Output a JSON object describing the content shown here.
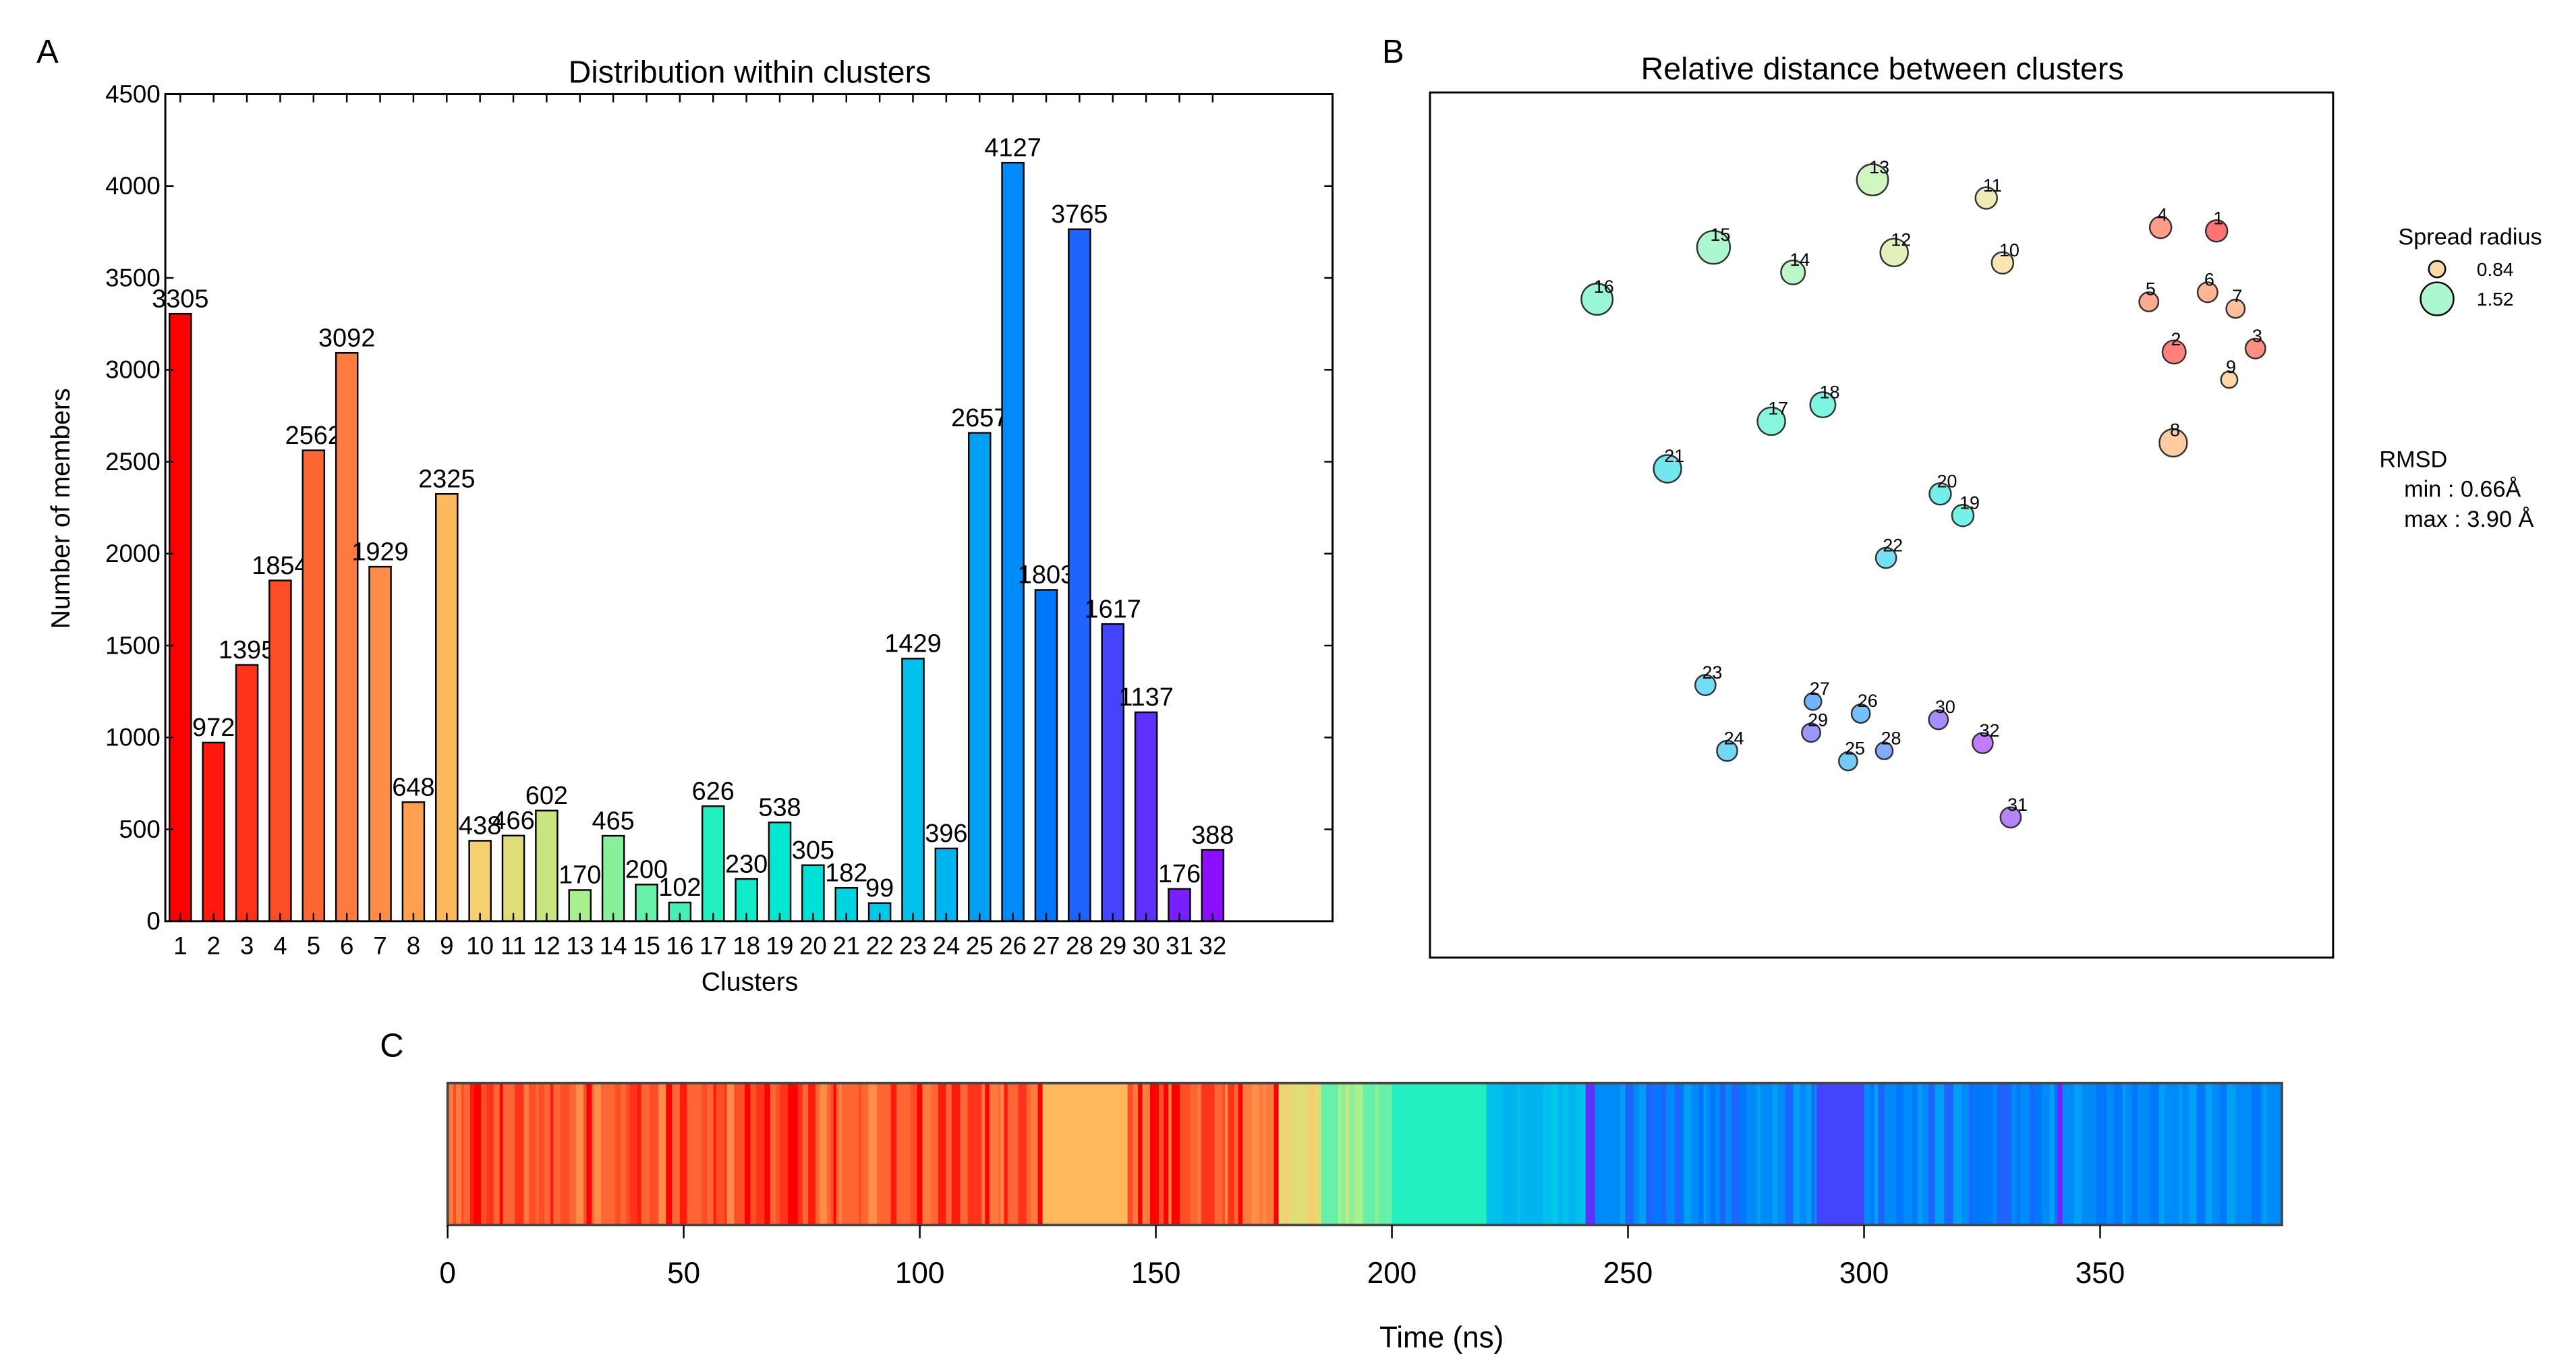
{
  "colors": [
    "#ff0000",
    "#ff1a0d",
    "#ff331a",
    "#ff4d26",
    "#ff6633",
    "#ff7a3d",
    "#ff8c47",
    "#ffa050",
    "#ffb85c",
    "#f5d070",
    "#e0dc78",
    "#c8e680",
    "#a8f08c",
    "#88f098",
    "#66f0a8",
    "#44f0b4",
    "#22f0c0",
    "#10ecc8",
    "#00e8d0",
    "#00e0d8",
    "#00d4e0",
    "#00c8e8",
    "#00c0ec",
    "#00b4f0",
    "#00a0f4",
    "#008cf8",
    "#0078fc",
    "#1e64ff",
    "#4444ff",
    "#6030ff",
    "#7820ff",
    "#8c10ff"
  ],
  "chart_data": [
    {
      "panel": "A",
      "type": "bar",
      "title": "Distribution within clusters",
      "xlabel": "Clusters",
      "ylabel": "Number of members",
      "ylim": [
        0,
        4500
      ],
      "xlim": [
        0.55,
        35.6
      ],
      "yticks": [
        "0",
        "500",
        "1000",
        "1500",
        "2000",
        "2500",
        "3000",
        "3500",
        "4000",
        "4500"
      ],
      "categories": [
        "1",
        "2",
        "3",
        "4",
        "5",
        "6",
        "7",
        "8",
        "9",
        "10",
        "11",
        "12",
        "13",
        "14",
        "15",
        "16",
        "17",
        "18",
        "19",
        "20",
        "21",
        "22",
        "23",
        "24",
        "25",
        "26",
        "27",
        "28",
        "29",
        "30",
        "31",
        "32"
      ],
      "values": [
        3305,
        972,
        1395,
        1854,
        2562,
        3092,
        1929,
        648,
        2325,
        438,
        466,
        602,
        170,
        465,
        200,
        102,
        626,
        230,
        538,
        305,
        182,
        99,
        1429,
        396,
        2657,
        4127,
        1803,
        3765,
        1617,
        1137,
        176,
        388
      ],
      "value_labels": [
        "3305",
        "972",
        "1395",
        "1854",
        "2562",
        "3092",
        "1929",
        "648",
        "2325",
        "438",
        "466",
        "602",
        "170",
        "465",
        "200",
        "102",
        "626",
        "230",
        "538",
        "305",
        "182",
        "99",
        "1429",
        "396",
        "2657",
        "4127",
        "1803",
        "3765",
        "1617",
        "1137",
        "176",
        "388"
      ]
    },
    {
      "panel": "B",
      "type": "scatter",
      "title": "Relative distance between clusters",
      "xlim": [
        0,
        100
      ],
      "ylim": [
        0,
        100
      ],
      "points": [
        {
          "label": "1",
          "x": 87.1,
          "y": 84.0,
          "spread": 1.05
        },
        {
          "label": "2",
          "x": 82.4,
          "y": 70.0,
          "spread": 1.12
        },
        {
          "label": "3",
          "x": 91.4,
          "y": 70.4,
          "spread": 0.98
        },
        {
          "label": "4",
          "x": 80.9,
          "y": 84.4,
          "spread": 1.05
        },
        {
          "label": "5",
          "x": 79.6,
          "y": 75.8,
          "spread": 0.95
        },
        {
          "label": "6",
          "x": 86.1,
          "y": 76.9,
          "spread": 0.98
        },
        {
          "label": "7",
          "x": 89.2,
          "y": 75.0,
          "spread": 0.92
        },
        {
          "label": "8",
          "x": 82.3,
          "y": 59.5,
          "spread": 1.3
        },
        {
          "label": "9",
          "x": 88.5,
          "y": 66.8,
          "spread": 0.84
        },
        {
          "label": "10",
          "x": 63.4,
          "y": 80.3,
          "spread": 1.05
        },
        {
          "label": "11",
          "x": 61.6,
          "y": 87.8,
          "spread": 1.05
        },
        {
          "label": "12",
          "x": 51.4,
          "y": 81.5,
          "spread": 1.3
        },
        {
          "label": "13",
          "x": 49.0,
          "y": 89.9,
          "spread": 1.45
        },
        {
          "label": "14",
          "x": 40.2,
          "y": 79.2,
          "spread": 1.15
        },
        {
          "label": "15",
          "x": 31.4,
          "y": 82.1,
          "spread": 1.52
        },
        {
          "label": "16",
          "x": 18.5,
          "y": 76.1,
          "spread": 1.45
        },
        {
          "label": "17",
          "x": 37.8,
          "y": 62.0,
          "spread": 1.3
        },
        {
          "label": "18",
          "x": 43.5,
          "y": 63.9,
          "spread": 1.2
        },
        {
          "label": "19",
          "x": 59.0,
          "y": 51.1,
          "spread": 1.05
        },
        {
          "label": "20",
          "x": 56.5,
          "y": 53.6,
          "spread": 1.05
        },
        {
          "label": "21",
          "x": 26.3,
          "y": 56.5,
          "spread": 1.3
        },
        {
          "label": "22",
          "x": 50.5,
          "y": 46.2,
          "spread": 1.0
        },
        {
          "label": "23",
          "x": 30.5,
          "y": 31.5,
          "spread": 1.0
        },
        {
          "label": "24",
          "x": 32.9,
          "y": 23.9,
          "spread": 1.0
        },
        {
          "label": "25",
          "x": 46.3,
          "y": 22.7,
          "spread": 0.92
        },
        {
          "label": "26",
          "x": 47.7,
          "y": 28.2,
          "spread": 0.92
        },
        {
          "label": "27",
          "x": 42.4,
          "y": 29.6,
          "spread": 0.86
        },
        {
          "label": "28",
          "x": 50.3,
          "y": 23.9,
          "spread": 0.86
        },
        {
          "label": "29",
          "x": 42.2,
          "y": 26.0,
          "spread": 0.92
        },
        {
          "label": "30",
          "x": 56.3,
          "y": 27.5,
          "spread": 0.95
        },
        {
          "label": "31",
          "x": 64.3,
          "y": 16.2,
          "spread": 1.0
        },
        {
          "label": "32",
          "x": 61.2,
          "y": 24.8,
          "spread": 1.0
        }
      ],
      "legend": {
        "title": "Spread radius",
        "entries": [
          {
            "label": "0.84",
            "value": 0.84,
            "cluster": 9
          },
          {
            "label": "1.52",
            "value": 1.52,
            "cluster": 15
          }
        ],
        "rmsd_title": "RMSD",
        "rmsd_min": "min : 0.66Å",
        "rmsd_max": "max : 3.90 Å"
      }
    },
    {
      "panel": "C",
      "type": "heatmap",
      "xlabel": "Time (ns)",
      "xlim": [
        0,
        388.5
      ],
      "xticks": [
        "0",
        "50",
        "100",
        "150",
        "200",
        "250",
        "300",
        "350"
      ],
      "segments": [
        {
          "start": 0,
          "end": 125,
          "clusters": [
            1,
            3,
            4,
            5,
            5,
            6,
            7,
            2,
            4,
            5
          ]
        },
        {
          "start": 125,
          "end": 126,
          "clusters": [
            1
          ]
        },
        {
          "start": 126,
          "end": 144,
          "clusters": [
            9
          ]
        },
        {
          "start": 144,
          "end": 175,
          "clusters": [
            1,
            4,
            5,
            6,
            7,
            3
          ]
        },
        {
          "start": 175,
          "end": 176,
          "clusters": [
            1
          ]
        },
        {
          "start": 176,
          "end": 185,
          "clusters": [
            10,
            11
          ]
        },
        {
          "start": 185,
          "end": 200,
          "clusters": [
            12,
            14,
            15,
            12,
            13
          ]
        },
        {
          "start": 200,
          "end": 220,
          "clusters": [
            17
          ]
        },
        {
          "start": 220,
          "end": 241,
          "clusters": [
            23,
            22,
            24
          ]
        },
        {
          "start": 241,
          "end": 243,
          "clusters": [
            30
          ]
        },
        {
          "start": 243,
          "end": 290,
          "clusters": [
            26,
            25,
            28,
            27,
            26
          ]
        },
        {
          "start": 290,
          "end": 300,
          "clusters": [
            29
          ]
        },
        {
          "start": 300,
          "end": 341,
          "clusters": [
            26,
            28,
            25,
            27
          ]
        },
        {
          "start": 341,
          "end": 342,
          "clusters": [
            31
          ]
        },
        {
          "start": 342,
          "end": 388.5,
          "clusters": [
            26,
            27,
            25,
            26
          ]
        }
      ]
    }
  ],
  "panel_letters": {
    "a": "A",
    "b": "B",
    "c": "C"
  }
}
